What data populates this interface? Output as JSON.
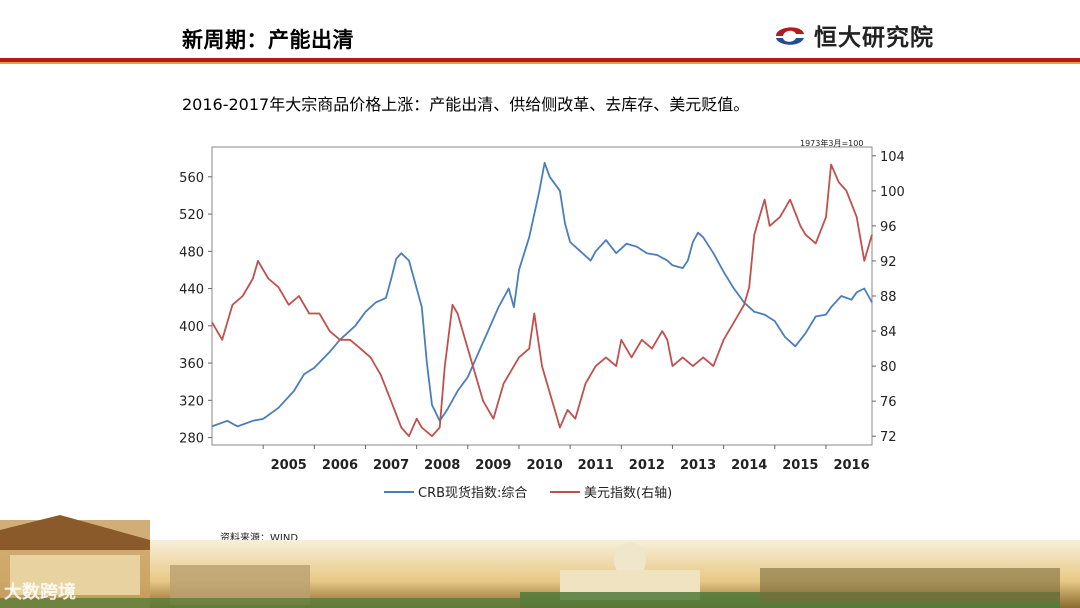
{
  "header": {
    "title": "新周期：产能出清",
    "brand_name": "恒大研究院"
  },
  "subtitle": "2016-2017年大宗商品价格上涨：产能出清、供给侧改革、去库存、美元贬值。",
  "source": "资料来源：WIND",
  "watermark": "大数跨境",
  "colors": {
    "crb": "#4a7ebb",
    "usd": "#c0504d",
    "brand_red": "#b01c1c"
  },
  "chart_data": {
    "type": "line",
    "title": "",
    "note": "1973年3月=100",
    "x_ticks": [
      "2005",
      "2006",
      "2007",
      "2008",
      "2009",
      "2010",
      "2011",
      "2012",
      "2013",
      "2014",
      "2015",
      "2016"
    ],
    "xlim": [
      2004.0,
      2016.9
    ],
    "left_axis": {
      "ticks": [
        280,
        320,
        360,
        400,
        440,
        480,
        520,
        560
      ],
      "ylim": [
        272,
        592
      ]
    },
    "right_axis": {
      "ticks": [
        72,
        76,
        80,
        84,
        88,
        92,
        96,
        100,
        104
      ],
      "ylim": [
        71,
        105
      ]
    },
    "series": [
      {
        "name": "CRB现货指数:综合",
        "axis": "left",
        "color": "#4a7ebb",
        "points": [
          [
            2004.0,
            292
          ],
          [
            2004.3,
            298
          ],
          [
            2004.5,
            292
          ],
          [
            2004.8,
            298
          ],
          [
            2005.0,
            300
          ],
          [
            2005.3,
            312
          ],
          [
            2005.6,
            330
          ],
          [
            2005.8,
            348
          ],
          [
            2006.0,
            355
          ],
          [
            2006.3,
            372
          ],
          [
            2006.5,
            385
          ],
          [
            2006.8,
            400
          ],
          [
            2007.0,
            415
          ],
          [
            2007.2,
            425
          ],
          [
            2007.4,
            430
          ],
          [
            2007.5,
            450
          ],
          [
            2007.6,
            472
          ],
          [
            2007.7,
            478
          ],
          [
            2007.85,
            470
          ],
          [
            2008.0,
            440
          ],
          [
            2008.1,
            420
          ],
          [
            2008.2,
            360
          ],
          [
            2008.3,
            315
          ],
          [
            2008.45,
            298
          ],
          [
            2008.6,
            310
          ],
          [
            2008.8,
            330
          ],
          [
            2009.0,
            345
          ],
          [
            2009.2,
            370
          ],
          [
            2009.4,
            395
          ],
          [
            2009.6,
            420
          ],
          [
            2009.8,
            440
          ],
          [
            2009.9,
            420
          ],
          [
            2010.0,
            460
          ],
          [
            2010.2,
            495
          ],
          [
            2010.4,
            545
          ],
          [
            2010.5,
            575
          ],
          [
            2010.6,
            560
          ],
          [
            2010.8,
            545
          ],
          [
            2010.9,
            510
          ],
          [
            2011.0,
            490
          ],
          [
            2011.2,
            480
          ],
          [
            2011.4,
            470
          ],
          [
            2011.5,
            480
          ],
          [
            2011.7,
            492
          ],
          [
            2011.9,
            478
          ],
          [
            2012.1,
            488
          ],
          [
            2012.3,
            485
          ],
          [
            2012.5,
            478
          ],
          [
            2012.7,
            476
          ],
          [
            2012.9,
            470
          ],
          [
            2013.0,
            465
          ],
          [
            2013.2,
            462
          ],
          [
            2013.3,
            470
          ],
          [
            2013.4,
            490
          ],
          [
            2013.5,
            500
          ],
          [
            2013.6,
            495
          ],
          [
            2013.8,
            478
          ],
          [
            2014.0,
            458
          ],
          [
            2014.2,
            440
          ],
          [
            2014.4,
            425
          ],
          [
            2014.6,
            415
          ],
          [
            2014.8,
            412
          ],
          [
            2015.0,
            405
          ],
          [
            2015.2,
            388
          ],
          [
            2015.4,
            378
          ],
          [
            2015.6,
            392
          ],
          [
            2015.8,
            410
          ],
          [
            2016.0,
            412
          ],
          [
            2016.1,
            420
          ],
          [
            2016.3,
            432
          ],
          [
            2016.5,
            428
          ],
          [
            2016.6,
            436
          ],
          [
            2016.75,
            440
          ],
          [
            2016.9,
            425
          ]
        ]
      },
      {
        "name": "美元指数(右轴)",
        "axis": "right",
        "color": "#c0504d",
        "points": [
          [
            2004.0,
            85
          ],
          [
            2004.2,
            83
          ],
          [
            2004.4,
            87
          ],
          [
            2004.6,
            88
          ],
          [
            2004.8,
            90
          ],
          [
            2004.9,
            92
          ],
          [
            2005.1,
            90
          ],
          [
            2005.3,
            89
          ],
          [
            2005.5,
            87
          ],
          [
            2005.7,
            88
          ],
          [
            2005.9,
            86
          ],
          [
            2006.1,
            86
          ],
          [
            2006.3,
            84
          ],
          [
            2006.5,
            83
          ],
          [
            2006.7,
            83
          ],
          [
            2006.9,
            82
          ],
          [
            2007.1,
            81
          ],
          [
            2007.3,
            79
          ],
          [
            2007.5,
            76
          ],
          [
            2007.7,
            73
          ],
          [
            2007.85,
            72
          ],
          [
            2008.0,
            74
          ],
          [
            2008.1,
            73
          ],
          [
            2008.3,
            72
          ],
          [
            2008.45,
            73
          ],
          [
            2008.55,
            80
          ],
          [
            2008.7,
            87
          ],
          [
            2008.8,
            86
          ],
          [
            2008.9,
            84
          ],
          [
            2009.0,
            82
          ],
          [
            2009.1,
            80
          ],
          [
            2009.3,
            76
          ],
          [
            2009.5,
            74
          ],
          [
            2009.7,
            78
          ],
          [
            2009.9,
            80
          ],
          [
            2010.0,
            81
          ],
          [
            2010.2,
            82
          ],
          [
            2010.3,
            86
          ],
          [
            2010.45,
            80
          ],
          [
            2010.55,
            78
          ],
          [
            2010.7,
            75
          ],
          [
            2010.8,
            73
          ],
          [
            2010.95,
            75
          ],
          [
            2011.1,
            74
          ],
          [
            2011.3,
            78
          ],
          [
            2011.5,
            80
          ],
          [
            2011.7,
            81
          ],
          [
            2011.9,
            80
          ],
          [
            2012.0,
            83
          ],
          [
            2012.2,
            81
          ],
          [
            2012.4,
            83
          ],
          [
            2012.6,
            82
          ],
          [
            2012.8,
            84
          ],
          [
            2012.9,
            83
          ],
          [
            2013.0,
            80
          ],
          [
            2013.2,
            81
          ],
          [
            2013.4,
            80
          ],
          [
            2013.6,
            81
          ],
          [
            2013.8,
            80
          ],
          [
            2014.0,
            83
          ],
          [
            2014.2,
            85
          ],
          [
            2014.4,
            87
          ],
          [
            2014.5,
            89
          ],
          [
            2014.6,
            95
          ],
          [
            2014.7,
            97
          ],
          [
            2014.8,
            99
          ],
          [
            2014.9,
            96
          ],
          [
            2015.1,
            97
          ],
          [
            2015.2,
            98
          ],
          [
            2015.3,
            99
          ],
          [
            2015.5,
            96
          ],
          [
            2015.6,
            95
          ],
          [
            2015.8,
            94
          ],
          [
            2016.0,
            97
          ],
          [
            2016.1,
            103
          ],
          [
            2016.25,
            101
          ],
          [
            2016.4,
            100
          ],
          [
            2016.6,
            97
          ],
          [
            2016.75,
            92
          ],
          [
            2016.85,
            94
          ],
          [
            2016.9,
            95
          ]
        ]
      }
    ],
    "grid": false,
    "legend_position": "bottom"
  }
}
